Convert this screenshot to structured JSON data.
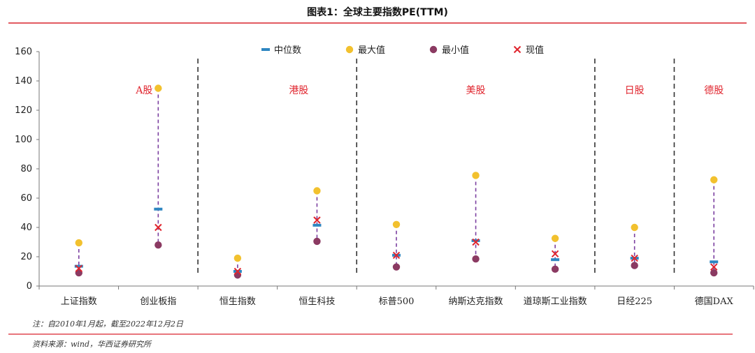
{
  "title": "图表1：全球主要指数PE(TTM)",
  "note": "注：自2010年1月起，截至2022年12月2日",
  "source": "资料来源：wind，华西证券研究所",
  "colors": {
    "accent_line": "#d9232d",
    "median": "#2e86c1",
    "max": "#f2c12e",
    "min": "#8b3a62",
    "current": "#e0252e",
    "range": "#7b3fa0",
    "group_label": "#e0252e"
  },
  "chart_data": {
    "type": "scatter",
    "ylim": [
      0,
      160
    ],
    "yticks": [
      0,
      20,
      40,
      60,
      80,
      100,
      120,
      140,
      160
    ],
    "categories": [
      "上证指数",
      "创业板指",
      "恒生指数",
      "恒生科技",
      "标普500",
      "纳斯达克指数",
      "道琼斯工业指数",
      "日经225",
      "德国DAX"
    ],
    "groups": [
      {
        "label": "A股",
        "from": 0,
        "to": 1
      },
      {
        "label": "港股",
        "from": 2,
        "to": 3
      },
      {
        "label": "美股",
        "from": 4,
        "to": 6
      },
      {
        "label": "日股",
        "from": 7,
        "to": 7
      },
      {
        "label": "德股",
        "from": 8,
        "to": 8
      }
    ],
    "series": [
      {
        "name": "中位数",
        "marker": "dash",
        "values": [
          13.5,
          52.5,
          10,
          41.5,
          21,
          31,
          18,
          19,
          16.5
        ]
      },
      {
        "name": "最大值",
        "marker": "circle",
        "values": [
          29.5,
          135,
          19,
          65,
          42,
          75.5,
          32.5,
          40,
          72.5
        ]
      },
      {
        "name": "最小值",
        "marker": "circle",
        "values": [
          9,
          28,
          7.5,
          30.5,
          13,
          18.5,
          11.5,
          14,
          9
        ]
      },
      {
        "name": "现值",
        "marker": "x",
        "values": [
          12,
          40,
          10,
          45,
          21,
          30,
          22,
          19,
          13
        ]
      }
    ]
  }
}
